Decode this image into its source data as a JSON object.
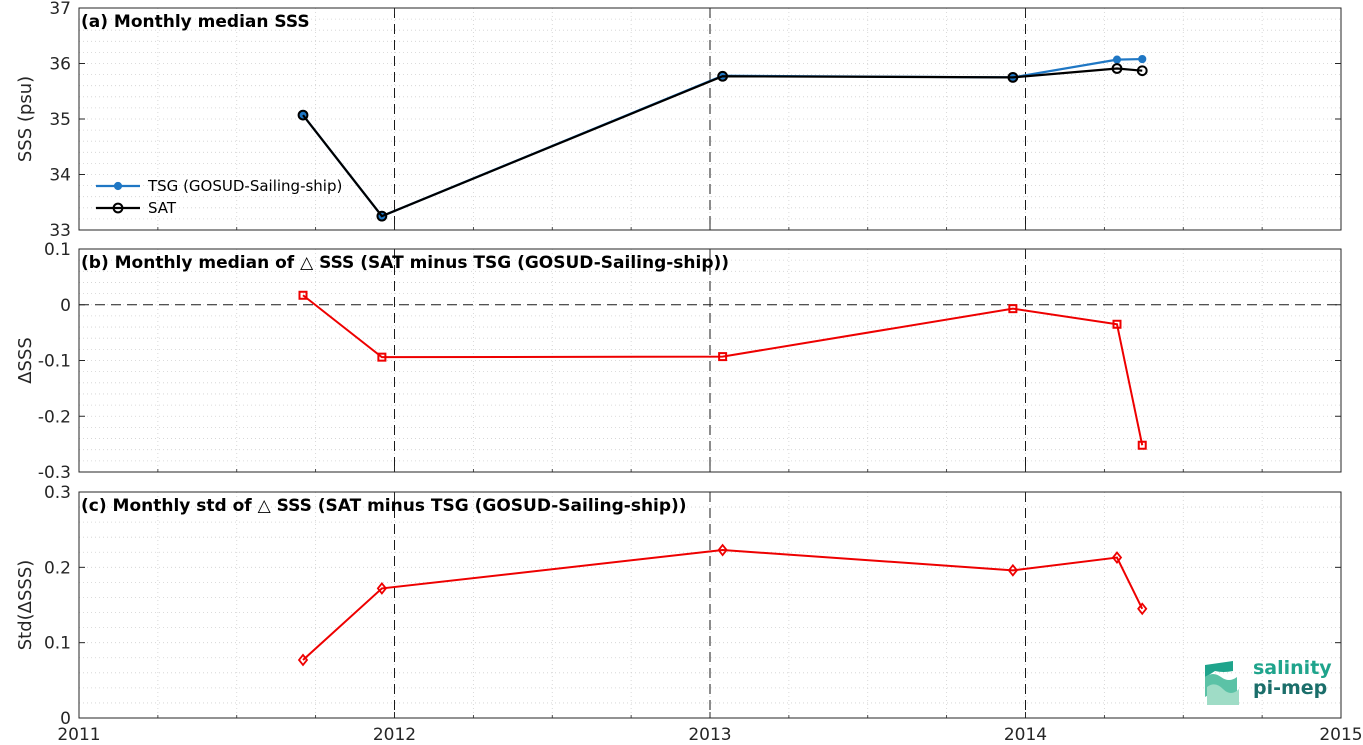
{
  "x_ticks": [
    "2011",
    "2012",
    "2013",
    "2014",
    "2015"
  ],
  "colors": {
    "tsg": "#1f77c4",
    "sat": "#000000",
    "delta": "#ee0000",
    "grid": "#d0d0d0",
    "axis": "#262626"
  },
  "logo": {
    "line1": "salinity",
    "line2": "pi-mep"
  },
  "chart_data": [
    {
      "type": "line",
      "title": "(a) Monthly median SSS",
      "ylabel": "SSS (psu)",
      "xlim": [
        2011,
        2015
      ],
      "ylim": [
        33,
        37
      ],
      "yticks": [
        "33",
        "34",
        "35",
        "36",
        "37"
      ],
      "legend": "left",
      "series": [
        {
          "name": "TSG (GOSUD-Sailing-ship)",
          "marker": "dot",
          "x": [
            2011.71,
            2011.96,
            2013.04,
            2013.96,
            2014.29,
            2014.37
          ],
          "y": [
            35.07,
            33.25,
            35.78,
            35.75,
            36.07,
            36.08
          ]
        },
        {
          "name": "SAT",
          "marker": "circle",
          "x": [
            2011.71,
            2011.96,
            2013.04,
            2013.96,
            2014.29,
            2014.37
          ],
          "y": [
            35.07,
            33.25,
            35.77,
            35.75,
            35.91,
            35.87
          ]
        }
      ],
      "vlines": [
        2012,
        2013,
        2014
      ]
    },
    {
      "type": "line",
      "title": "(b) Monthly median of △ SSS (SAT minus TSG (GOSUD-Sailing-ship))",
      "ylabel": "ΔSSS",
      "xlim": [
        2011,
        2015
      ],
      "ylim": [
        -0.3,
        0.1
      ],
      "yticks": [
        "-0.3",
        "-0.2",
        "-0.1",
        "0",
        "0.1"
      ],
      "series": [
        {
          "name": "",
          "marker": "square",
          "x": [
            2011.71,
            2011.96,
            2013.04,
            2013.96,
            2014.29,
            2014.37
          ],
          "y": [
            0.017,
            -0.094,
            -0.093,
            -0.007,
            -0.035,
            -0.252
          ]
        }
      ],
      "vlines": [
        2012,
        2013,
        2014
      ],
      "hline": 0
    },
    {
      "type": "line",
      "title": "(c) Monthly std of △ SSS (SAT minus TSG (GOSUD-Sailing-ship))",
      "ylabel": "Std(ΔSSS)",
      "xlim": [
        2011,
        2015
      ],
      "ylim": [
        0,
        0.3
      ],
      "yticks": [
        "0",
        "0.1",
        "0.2",
        "0.3"
      ],
      "series": [
        {
          "name": "",
          "marker": "diamond",
          "x": [
            2011.71,
            2011.96,
            2013.04,
            2013.96,
            2014.29,
            2014.37
          ],
          "y": [
            0.077,
            0.172,
            0.223,
            0.196,
            0.213,
            0.145
          ]
        }
      ],
      "vlines": [
        2012,
        2013,
        2014
      ]
    }
  ]
}
